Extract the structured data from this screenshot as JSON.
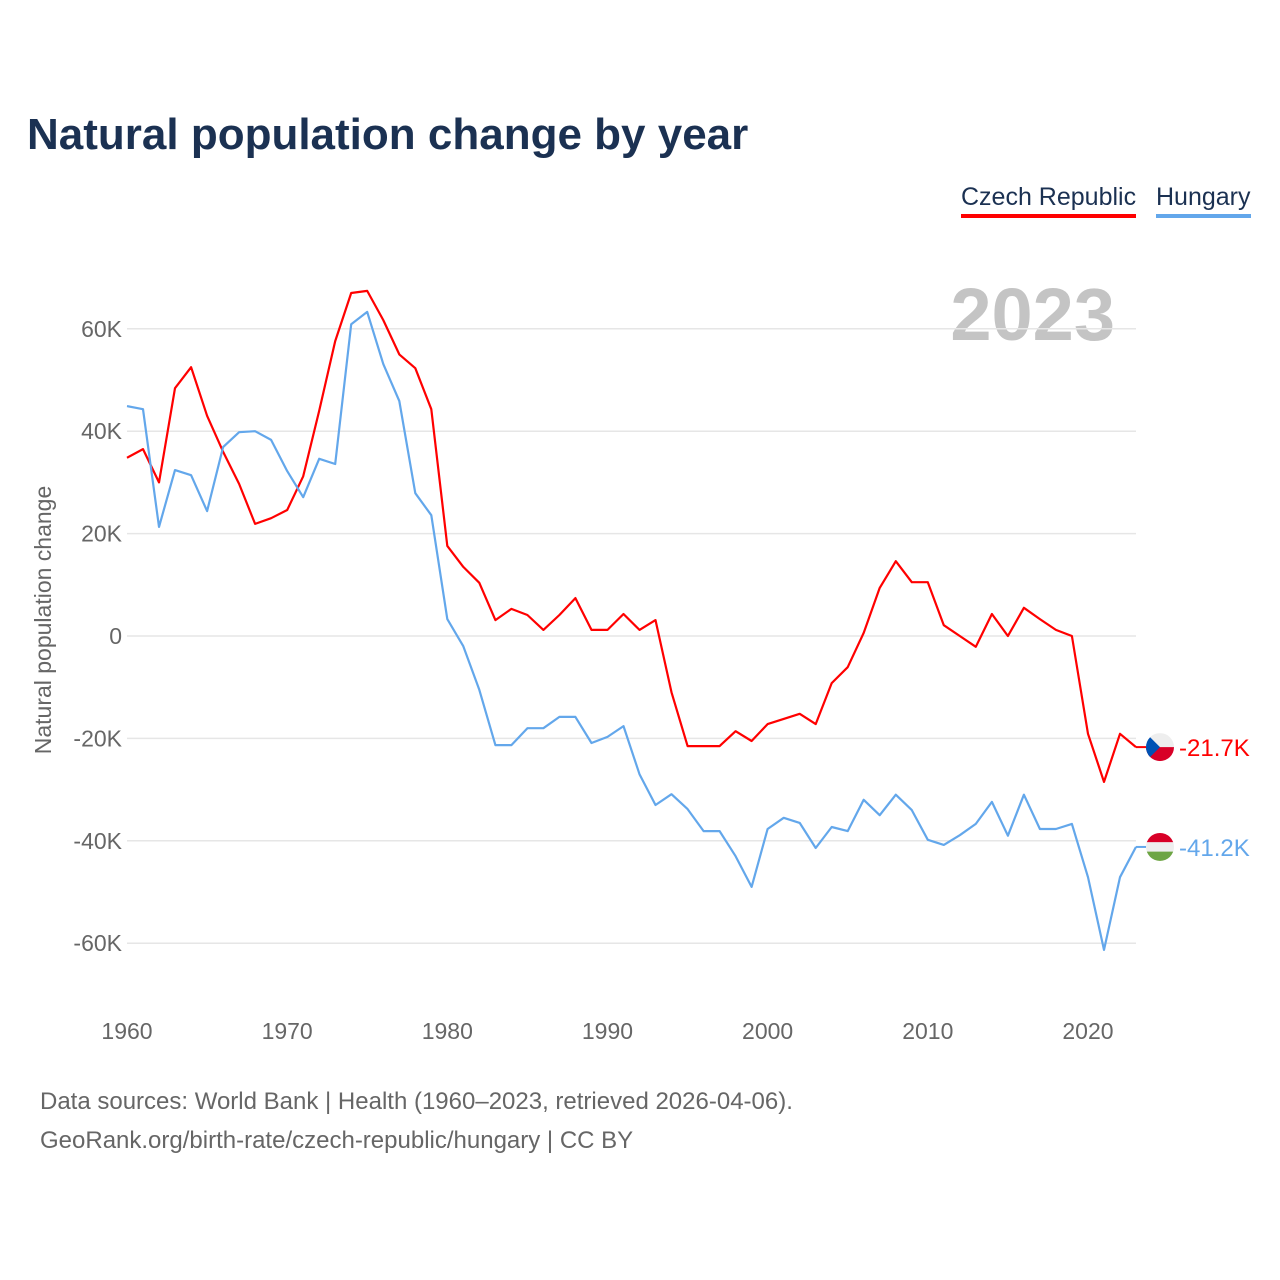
{
  "title": "Natural population change by year",
  "legend": [
    {
      "label": "Czech Republic",
      "color": "#ff0000"
    },
    {
      "label": "Hungary",
      "color": "#63a7eb"
    }
  ],
  "year_watermark": "2023",
  "footer": {
    "line1": "Data sources: World Bank | Health (1960–2023, retrieved 2026-04-06).",
    "line2": "GeoRank.org/birth-rate/czech-republic/hungary | CC BY"
  },
  "chart_data": {
    "type": "line",
    "title": "Natural population change by year",
    "xlabel": "",
    "ylabel": "Natural population change",
    "xlim": [
      1960,
      2023
    ],
    "ylim": [
      -70000,
      70000
    ],
    "x_ticks": [
      1960,
      1970,
      1980,
      1990,
      2000,
      2010,
      2020
    ],
    "y_ticks": [
      60000,
      40000,
      20000,
      0,
      -20000,
      -40000,
      -60000
    ],
    "y_tick_labels": [
      "60K",
      "40K",
      "20K",
      "0",
      "-20K",
      "-40K",
      "-60K"
    ],
    "grid": true,
    "legend_position": "top-right",
    "x_start": 1960,
    "series": [
      {
        "name": "Czech Republic",
        "color": "#ff0000",
        "end_label": "-21.7K",
        "flag": "czech-flag",
        "values": [
          34800,
          36500,
          30000,
          48400,
          52500,
          43000,
          36000,
          29700,
          21900,
          23000,
          24600,
          31200,
          44000,
          57600,
          67000,
          67400,
          61700,
          55000,
          52300,
          44300,
          17600,
          13500,
          10400,
          3100,
          5300,
          4100,
          1200,
          4100,
          7400,
          1200,
          1200,
          4300,
          1200,
          3100,
          -11000,
          -21500,
          -21500,
          -21500,
          -18600,
          -20500,
          -17200,
          -16200,
          -15200,
          -17200,
          -9200,
          -6100,
          600,
          9400,
          14600,
          10500,
          10500,
          2100,
          0,
          -2100,
          4300,
          0,
          5500,
          3300,
          1200,
          0,
          -19100,
          -28500,
          -19100,
          -21700
        ]
      },
      {
        "name": "Hungary",
        "color": "#63a7eb",
        "end_label": "-41.2K",
        "flag": "hungary-flag",
        "values": [
          44900,
          44300,
          21300,
          32400,
          31400,
          24400,
          36900,
          39800,
          40000,
          38300,
          32200,
          27100,
          34600,
          33600,
          60900,
          63300,
          53100,
          45900,
          27900,
          23600,
          3300,
          -2000,
          -10500,
          -21300,
          -21300,
          -18000,
          -18000,
          -15800,
          -15800,
          -20900,
          -19700,
          -17600,
          -27000,
          -33000,
          -30900,
          -33800,
          -38100,
          -38100,
          -43000,
          -49000,
          -37700,
          -35500,
          -36500,
          -41400,
          -37300,
          -38100,
          -32000,
          -35000,
          -31000,
          -34000,
          -39800,
          -40800,
          -38900,
          -36700,
          -32400,
          -39000,
          -31000,
          -37700,
          -37700,
          -36700,
          -47100,
          -61300,
          -47100,
          -41200
        ]
      }
    ]
  }
}
